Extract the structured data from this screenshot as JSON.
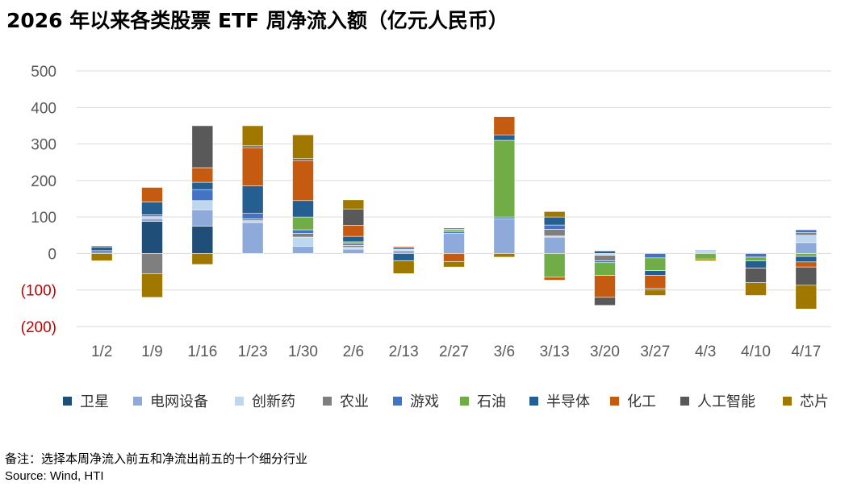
{
  "title": "2026 年以来各类股票 ETF 周净流入额（亿元人民币）",
  "note": "备注：选择本周净流入前五和净流出前五的十个细分行业",
  "source": "Source: Wind, HTI",
  "colors": {
    "negative_tick": "#c00000",
    "axis_tick": "#595959",
    "grid": "#d9d9d9"
  },
  "chart_data": {
    "type": "bar",
    "stacked": true,
    "title": "2026 年以来各类股票 ETF 周净流入额（亿元人民币）",
    "xlabel": "",
    "ylabel": "",
    "ylim": [
      -200,
      500
    ],
    "grid": true,
    "legend_position": "bottom",
    "categories": [
      "1/2",
      "1/9",
      "1/16",
      "1/23",
      "1/30",
      "2/6",
      "2/13",
      "2/27",
      "3/6",
      "3/13",
      "3/20",
      "3/27",
      "4/3",
      "4/10",
      "4/17"
    ],
    "y_ticks": [
      {
        "value": 500,
        "label": "500"
      },
      {
        "value": 400,
        "label": "400"
      },
      {
        "value": 300,
        "label": "300"
      },
      {
        "value": 200,
        "label": "200"
      },
      {
        "value": 100,
        "label": "100"
      },
      {
        "value": 0,
        "label": "0"
      },
      {
        "value": -100,
        "label": "(100)"
      },
      {
        "value": -200,
        "label": "(200)"
      }
    ],
    "series": [
      {
        "name": "卫星",
        "color": "#1f4e79",
        "values": [
          3,
          88,
          75,
          0,
          0,
          0,
          0,
          0,
          0,
          0,
          0,
          0,
          0,
          0,
          0
        ]
      },
      {
        "name": "电网设备",
        "color": "#8eaadb",
        "values": [
          0,
          8,
          45,
          85,
          20,
          12,
          8,
          55,
          95,
          45,
          0,
          0,
          0,
          0,
          30
        ]
      },
      {
        "name": "创新药",
        "color": "#bdd7ee",
        "values": [
          0,
          5,
          25,
          5,
          25,
          5,
          3,
          0,
          0,
          3,
          -5,
          0,
          8,
          0,
          20
        ]
      },
      {
        "name": "农业",
        "color": "#7f7f7f",
        "values": [
          0,
          -55,
          0,
          5,
          10,
          5,
          0,
          0,
          0,
          18,
          -15,
          0,
          0,
          0,
          7
        ]
      },
      {
        "name": "游戏",
        "color": "#4472c4",
        "values": [
          5,
          5,
          30,
          15,
          10,
          5,
          5,
          5,
          5,
          12,
          -5,
          -12,
          0,
          -10,
          8
        ]
      },
      {
        "name": "石油",
        "color": "#70ad47",
        "values": [
          0,
          0,
          0,
          0,
          35,
          5,
          0,
          5,
          210,
          -65,
          -35,
          -35,
          -15,
          -10,
          -8
        ]
      },
      {
        "name": "半导体",
        "color": "#255e91",
        "values": [
          10,
          35,
          20,
          75,
          45,
          15,
          -20,
          2,
          15,
          22,
          7,
          -13,
          2,
          -20,
          -15
        ]
      },
      {
        "name": "化工",
        "color": "#c55a11",
        "values": [
          3,
          40,
          40,
          105,
          110,
          30,
          3,
          -22,
          50,
          -8,
          -60,
          -35,
          0,
          0,
          -14
        ]
      },
      {
        "name": "人工智能",
        "color": "#595959",
        "values": [
          0,
          0,
          115,
          5,
          5,
          45,
          0,
          3,
          0,
          0,
          -22,
          -5,
          0,
          -40,
          -50
        ]
      },
      {
        "name": "芯片",
        "color": "#a07800",
        "values": [
          -20,
          -65,
          -30,
          55,
          65,
          25,
          -35,
          -15,
          -10,
          15,
          0,
          -15,
          -5,
          -35,
          -65
        ]
      }
    ]
  }
}
